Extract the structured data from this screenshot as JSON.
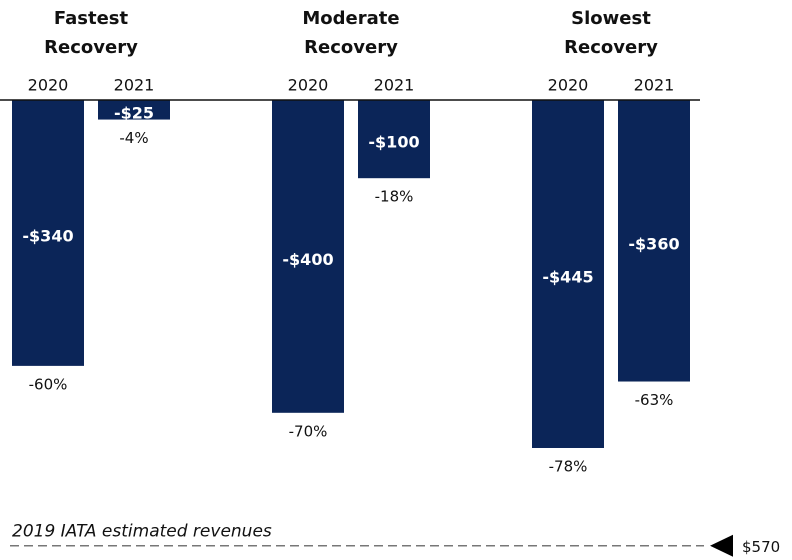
{
  "chart_data": {
    "type": "bar",
    "groups": [
      "Fastest Recovery",
      "Moderate Recovery",
      "Slowest Recovery"
    ],
    "categories": [
      "2020",
      "2021",
      "2020",
      "2021",
      "2020",
      "2021"
    ],
    "values": [
      -340,
      -25,
      -400,
      -100,
      -445,
      -360
    ],
    "value_labels": [
      "-$340",
      "-$25",
      "-$400",
      "-$100",
      "-$445",
      "-$360"
    ],
    "percent_values": [
      -60,
      -4,
      -70,
      -18,
      -78,
      -63
    ],
    "percent_value_labels": [
      "-60%",
      "-4%",
      "-70%",
      "-18%",
      "-78%",
      "-63%"
    ],
    "color": "#0b2558",
    "reference": {
      "label": "2019 IATA estimated revenues",
      "value": -570,
      "value_label": "$570"
    }
  }
}
